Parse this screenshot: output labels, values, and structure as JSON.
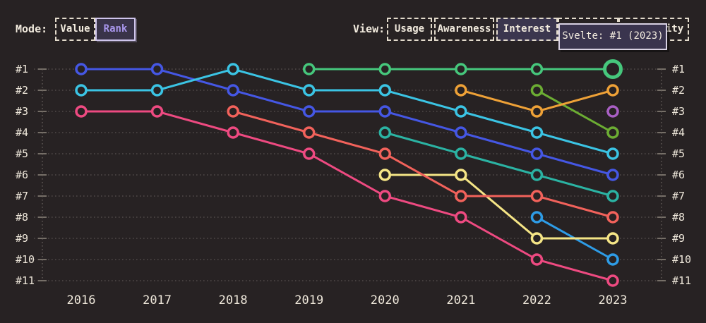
{
  "page": {
    "background": "#272223",
    "text_color": "#efe8db"
  },
  "controls": {
    "mode": {
      "label": "Mode:",
      "options": [
        {
          "label": "Value",
          "selected": false
        },
        {
          "label": "Rank",
          "selected": true
        }
      ],
      "selected_color": "#a795ea"
    },
    "view": {
      "label": "View:",
      "options": [
        {
          "label": "Usage",
          "selected": false
        },
        {
          "label": "Awareness",
          "selected": false
        },
        {
          "label": "Interest",
          "selected": true
        },
        {
          "label": "",
          "selected": false,
          "covered_by_tooltip": true
        },
        {
          "label": "Positivity",
          "selected": false,
          "partially_covered_by_tooltip": true
        }
      ]
    }
  },
  "tooltip": {
    "text": "Svelte: #1 (2023)",
    "background": "#3a344e",
    "border": "#d8d1e3"
  },
  "chart_data": {
    "type": "line",
    "subtype": "bump-rank-chart",
    "title": "",
    "xlabel": "",
    "ylabel": "",
    "x_categories": [
      "2016",
      "2017",
      "2018",
      "2019",
      "2020",
      "2021",
      "2022",
      "2023"
    ],
    "rank_labels": [
      "#1",
      "#2",
      "#3",
      "#4",
      "#5",
      "#6",
      "#7",
      "#8",
      "#9",
      "#10",
      "#11"
    ],
    "ylim": [
      1,
      11
    ],
    "y_inverted": true,
    "grid": "dotted horizontal line per rank, dotted vertical axis lines left and right",
    "legend": "none visible",
    "series": [
      {
        "name": "blue",
        "color": "#4557e4",
        "points": [
          [
            "2016",
            1
          ],
          [
            "2017",
            1
          ],
          [
            "2018",
            2
          ],
          [
            "2019",
            3
          ],
          [
            "2020",
            3
          ],
          [
            "2021",
            4
          ],
          [
            "2022",
            5
          ],
          [
            "2023",
            6
          ]
        ]
      },
      {
        "name": "cyan",
        "color": "#3bc4e4",
        "points": [
          [
            "2016",
            2
          ],
          [
            "2017",
            2
          ],
          [
            "2018",
            1
          ],
          [
            "2019",
            2
          ],
          [
            "2020",
            2
          ],
          [
            "2021",
            3
          ],
          [
            "2022",
            4
          ],
          [
            "2023",
            5
          ]
        ]
      },
      {
        "name": "pink",
        "color": "#ee4a81",
        "points": [
          [
            "2016",
            3
          ],
          [
            "2017",
            3
          ],
          [
            "2018",
            4
          ],
          [
            "2019",
            5
          ],
          [
            "2020",
            7
          ],
          [
            "2021",
            8
          ],
          [
            "2022",
            10
          ],
          [
            "2023",
            11
          ]
        ]
      },
      {
        "name": "teal",
        "color": "#2bb3a3",
        "points": [
          [
            "2020",
            4
          ],
          [
            "2021",
            5
          ],
          [
            "2022",
            6
          ],
          [
            "2023",
            7
          ]
        ]
      },
      {
        "name": "sky",
        "color": "#2e9ce6",
        "points": [
          [
            "2022",
            8
          ],
          [
            "2023",
            10
          ]
        ]
      },
      {
        "name": "yellow",
        "color": "#f5e586",
        "points": [
          [
            "2020",
            6
          ],
          [
            "2021",
            6
          ],
          [
            "2022",
            9
          ],
          [
            "2023",
            9
          ]
        ]
      },
      {
        "name": "salmon",
        "color": "#f2625b",
        "points": [
          [
            "2018",
            3
          ],
          [
            "2019",
            4
          ],
          [
            "2020",
            5
          ],
          [
            "2021",
            7
          ],
          [
            "2022",
            7
          ],
          [
            "2023",
            8
          ]
        ]
      },
      {
        "name": "olive",
        "color": "#6cad33",
        "points": [
          [
            "2022",
            2
          ],
          [
            "2023",
            4
          ]
        ]
      },
      {
        "name": "purple",
        "color": "#a95fc4",
        "points": [
          [
            "2023",
            3
          ]
        ]
      },
      {
        "name": "orange",
        "color": "#eea137",
        "points": [
          [
            "2021",
            2
          ],
          [
            "2022",
            3
          ],
          [
            "2023",
            2
          ]
        ]
      },
      {
        "name": "svelte-green",
        "color": "#46c77c",
        "points": [
          [
            "2019",
            1
          ],
          [
            "2020",
            1
          ],
          [
            "2021",
            1
          ],
          [
            "2022",
            1
          ],
          [
            "2023",
            1
          ]
        ]
      }
    ],
    "highlight": {
      "series": "svelte-green",
      "year": "2023",
      "rank": 1,
      "tooltip": "Svelte: #1 (2023)"
    }
  }
}
